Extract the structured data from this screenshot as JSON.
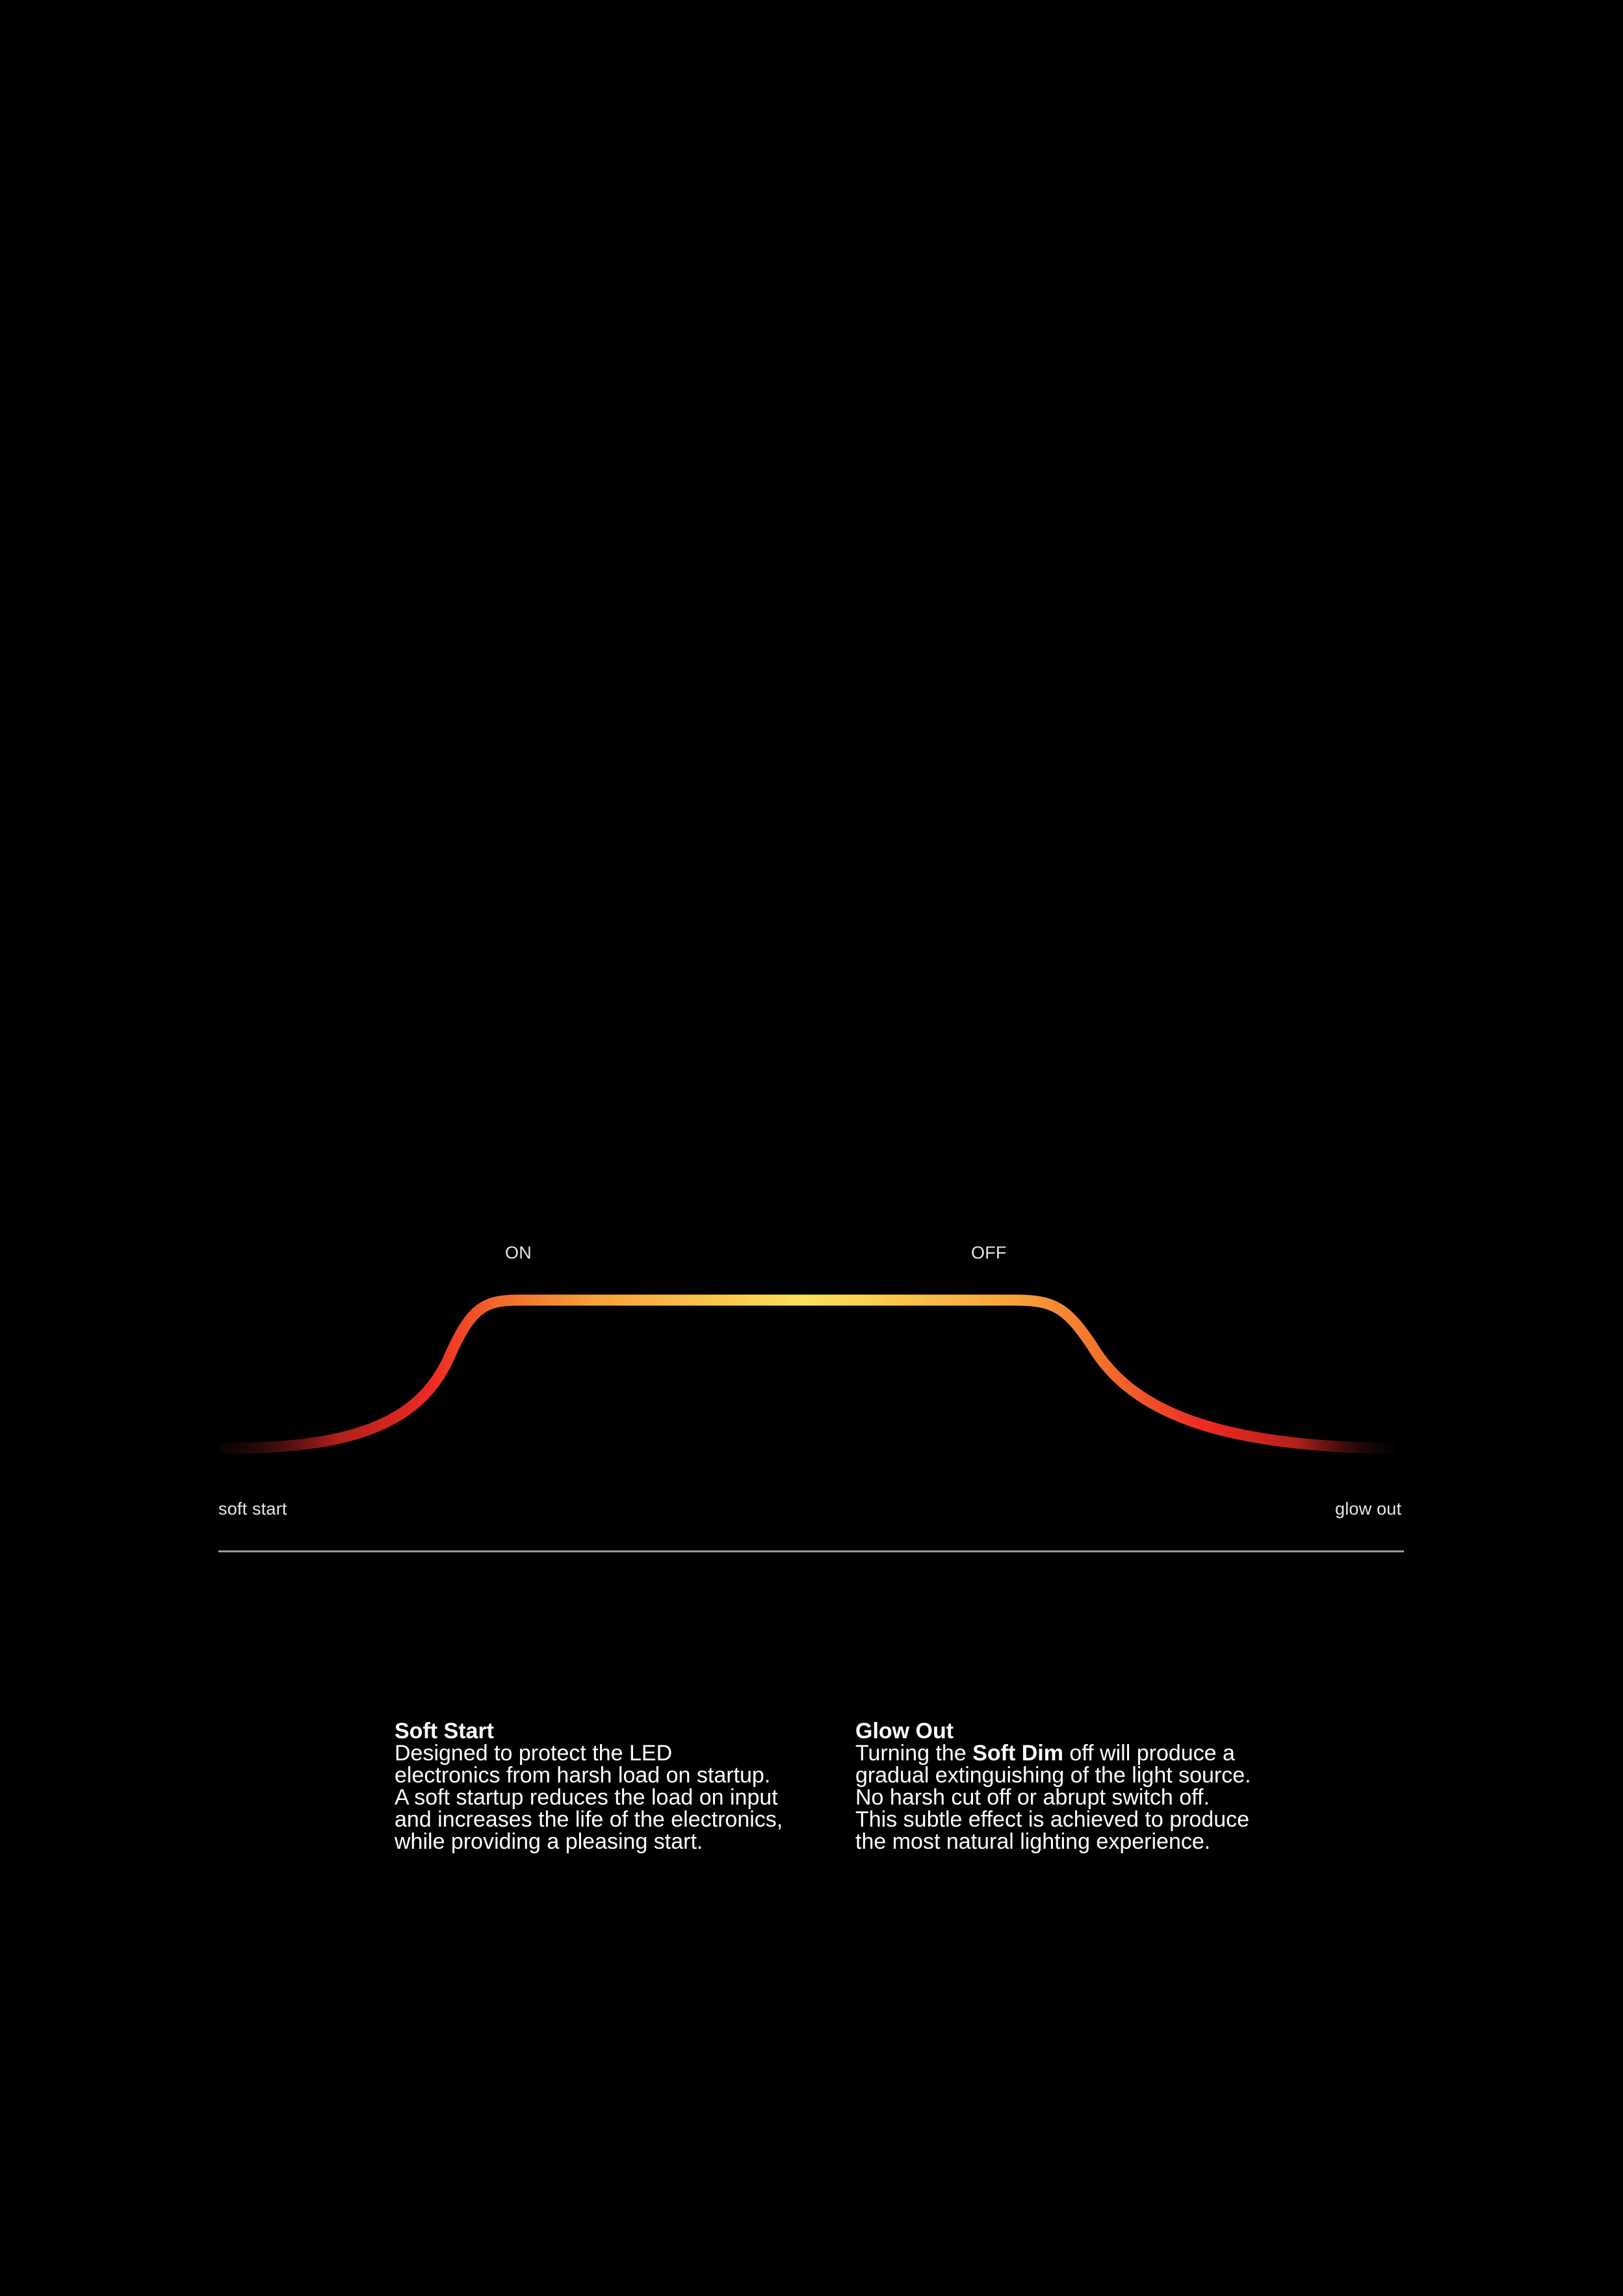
{
  "diagram": {
    "label_on": "ON",
    "label_off": "OFF",
    "label_start": "soft start",
    "label_end": "glow out",
    "gradient_colors": {
      "dim_edge": "#2a0e0e",
      "red": "#ee2a24",
      "orange": "#f26b2c",
      "amber": "#f7a23a",
      "yellow": "#fde05c"
    }
  },
  "sections": {
    "soft_start": {
      "title": "Soft Start",
      "lines": [
        "Designed to protect the LED",
        "electronics from harsh load on startup.",
        "A soft startup reduces the load on input",
        "and increases the life of the electronics,",
        "while providing a pleasing start."
      ]
    },
    "glow_out": {
      "title": "Glow Out",
      "line1_before": "Turning the ",
      "line1_bold": "Soft Dim",
      "line1_after": " off will produce a",
      "lines": [
        "gradual extinguishing of the light source.",
        "No harsh cut off or abrupt switch off.",
        "This subtle effect is achieved to produce",
        "the most natural lighting experience."
      ]
    }
  }
}
